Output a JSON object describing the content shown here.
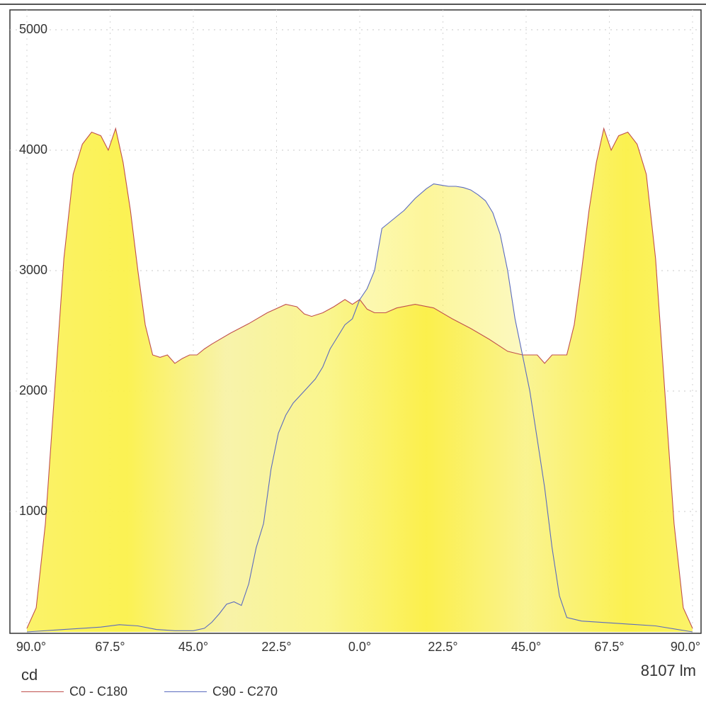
{
  "chart_data": {
    "type": "area",
    "ylim": [
      0,
      5000
    ],
    "yticks": [
      1000,
      2000,
      3000,
      4000,
      5000
    ],
    "ytick_labels": [
      "1000",
      "2000",
      "3000",
      "4000",
      "5000"
    ],
    "xticks": [
      -90,
      -67.5,
      -45,
      -22.5,
      0,
      22.5,
      45,
      67.5,
      90
    ],
    "xtick_labels": [
      "90.0°",
      "67.5°",
      "45.0°",
      "22.5°",
      "0.0°",
      "22.5°",
      "45.0°",
      "67.5°",
      "90.0°"
    ],
    "xlim": [
      -90,
      90
    ],
    "ylabel": "cd",
    "flux_label": "8107 lm",
    "grid": true,
    "series": [
      {
        "name": "C0 - C180",
        "color": "#c0504d",
        "x": [
          -90,
          -87.5,
          -85,
          -82.5,
          -80,
          -77.5,
          -75,
          -72.5,
          -70,
          -68,
          -66,
          -64,
          -62,
          -60,
          -58,
          -56,
          -54,
          -52,
          -50,
          -48,
          -46,
          -44,
          -42,
          -40,
          -35,
          -30,
          -25,
          -20,
          -17,
          -15,
          -13,
          -10,
          -7,
          -4,
          -2,
          0,
          2,
          4,
          7,
          10,
          15,
          20,
          25,
          30,
          35,
          40,
          44,
          46,
          48,
          50,
          52,
          54,
          56,
          58,
          60,
          62,
          64,
          66,
          68,
          70,
          72.5,
          75,
          77.5,
          80,
          82.5,
          85,
          87.5,
          90
        ],
        "values": [
          30,
          200,
          900,
          2000,
          3100,
          3800,
          4050,
          4150,
          4120,
          4000,
          4180,
          3900,
          3500,
          3000,
          2550,
          2300,
          2280,
          2300,
          2230,
          2270,
          2300,
          2300,
          2350,
          2390,
          2480,
          2560,
          2650,
          2720,
          2700,
          2640,
          2620,
          2650,
          2700,
          2760,
          2720,
          2760,
          2680,
          2650,
          2650,
          2690,
          2720,
          2690,
          2600,
          2520,
          2430,
          2330,
          2300,
          2300,
          2300,
          2230,
          2300,
          2300,
          2300,
          2550,
          3000,
          3500,
          3900,
          4180,
          4000,
          4120,
          4150,
          4050,
          3800,
          3100,
          2000,
          900,
          200,
          30
        ]
      },
      {
        "name": "C90 - C270",
        "color": "#5b6bbf",
        "x": [
          -90,
          -80,
          -70,
          -65,
          -60,
          -55,
          -50,
          -45,
          -42,
          -40,
          -38,
          -36,
          -34,
          -32,
          -30,
          -28,
          -26,
          -24,
          -22,
          -20,
          -18,
          -15,
          -12,
          -10,
          -8,
          -6,
          -4,
          -2,
          0,
          2,
          4,
          6,
          8,
          10,
          12,
          15,
          18,
          20,
          22,
          24,
          26,
          28,
          30,
          32,
          34,
          36,
          38,
          40,
          42,
          44,
          46,
          48,
          50,
          52,
          54,
          56,
          60,
          70,
          80,
          90
        ],
        "values": [
          0,
          20,
          40,
          60,
          50,
          20,
          10,
          10,
          30,
          80,
          150,
          230,
          250,
          220,
          400,
          700,
          900,
          1350,
          1650,
          1800,
          1900,
          2000,
          2100,
          2200,
          2350,
          2450,
          2550,
          2600,
          2760,
          2850,
          3000,
          3350,
          3400,
          3450,
          3500,
          3600,
          3680,
          3720,
          3710,
          3700,
          3700,
          3690,
          3670,
          3630,
          3580,
          3480,
          3300,
          3000,
          2600,
          2300,
          2000,
          1600,
          1200,
          700,
          300,
          120,
          90,
          70,
          50,
          0
        ]
      }
    ]
  }
}
